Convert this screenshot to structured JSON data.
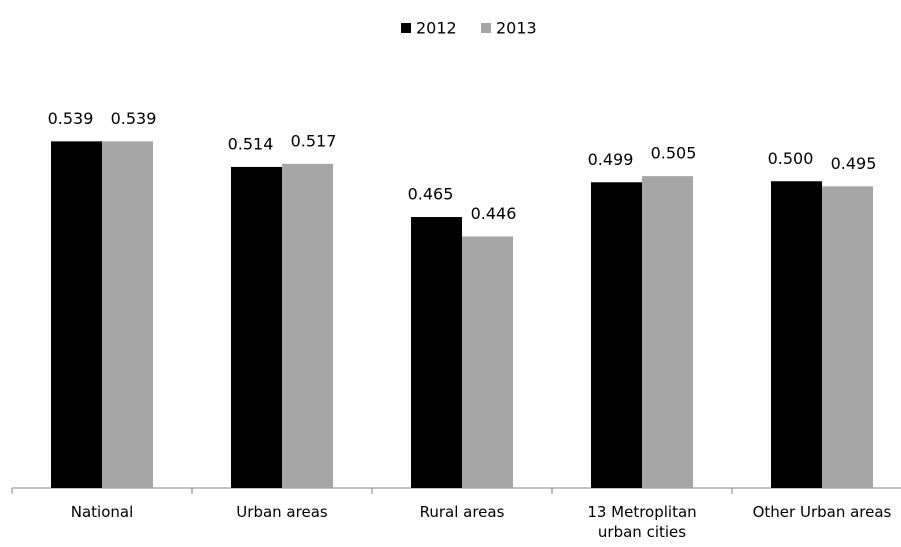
{
  "chart_data": {
    "type": "bar",
    "categories": [
      "National",
      "Urban areas",
      "Rural areas",
      "13 Metroplitan urban cities",
      "Other Urban areas"
    ],
    "series": [
      {
        "name": "2012",
        "color": "#000000",
        "values": [
          0.539,
          0.514,
          0.465,
          0.499,
          0.5
        ],
        "value_labels": [
          "0.539",
          "0.514",
          "0.465",
          "0.499",
          "0.500"
        ]
      },
      {
        "name": "2013",
        "color": "#a6a6a6",
        "values": [
          0.539,
          0.517,
          0.446,
          0.505,
          0.495
        ],
        "value_labels": [
          "0.539",
          "0.517",
          "0.446",
          "0.505",
          "0.495"
        ]
      }
    ],
    "ylim": [
      0.2,
      0.6
    ],
    "legend": "top"
  }
}
